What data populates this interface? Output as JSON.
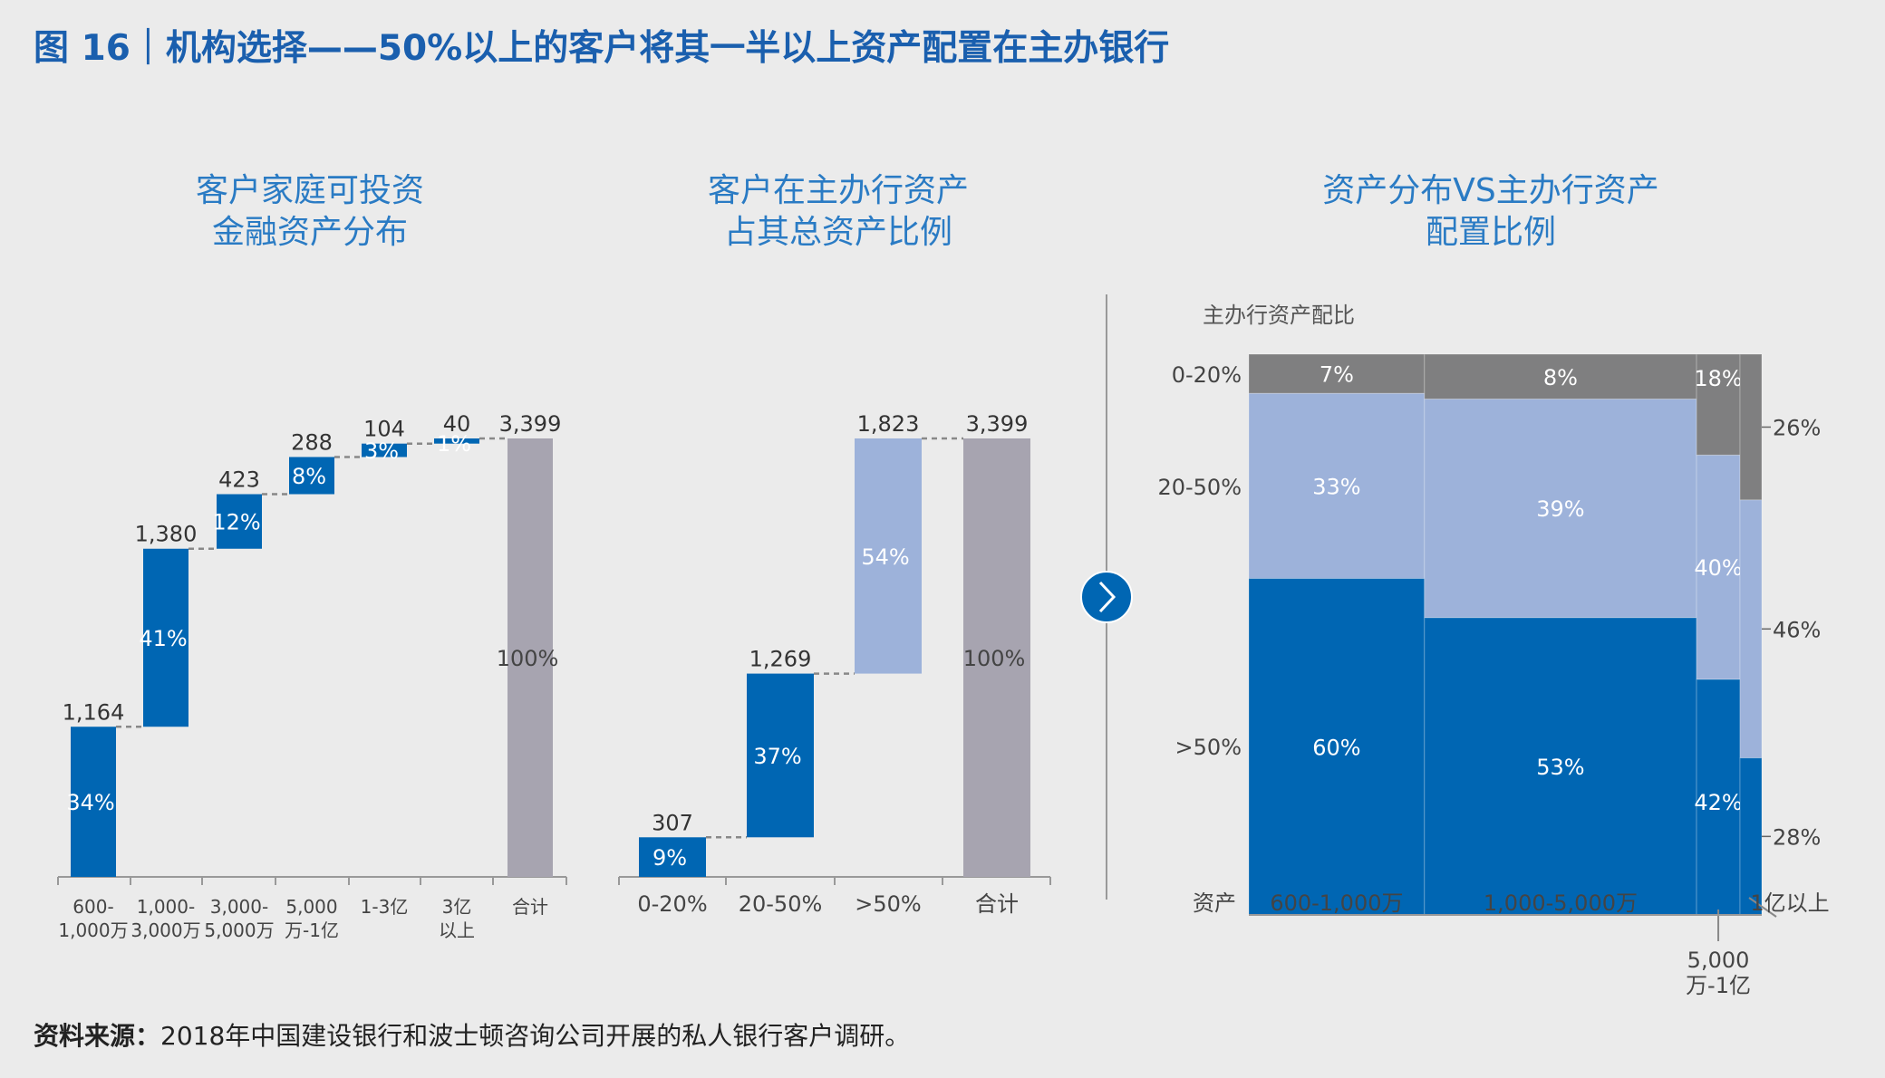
{
  "figure_title": "图 16｜机构选择——50%以上的客户将其一半以上资产配置在主办银行",
  "source": {
    "label": "资料来源：",
    "text": "2018年中国建设银行和波士顿咨询公司开展的私人银行客户调研。"
  },
  "colors": {
    "title": "#1a5fae",
    "subtitle": "#2a7bc4",
    "dark_blue": "#0066b3",
    "light_blue": "#9db2da",
    "grey": "#7f7f80",
    "total": "#a7a4b0",
    "background": "#ebebeb"
  },
  "arrow_icon": "chevron-right-circle",
  "chart_data": [
    {
      "type": "bar",
      "subtype": "waterfall",
      "title": [
        "客户家庭可投资",
        "金融资产分布"
      ],
      "categories": [
        [
          "600-",
          "1,000万"
        ],
        [
          "1,000-",
          "3,000万"
        ],
        [
          "3,000-",
          "5,000万"
        ],
        [
          "5,000",
          "万-1亿"
        ],
        [
          "1-3亿"
        ],
        [
          "3亿",
          "以上"
        ],
        [
          "合计"
        ]
      ],
      "values": [
        1164,
        1380,
        423,
        288,
        104,
        40,
        3399
      ],
      "value_labels": [
        "1,164",
        "1,380",
        "423",
        "288",
        "104",
        "40",
        "3,399"
      ],
      "percent_labels": [
        "34%",
        "41%",
        "12%",
        "8%",
        "3%",
        "1%",
        "100%"
      ],
      "total_index": 6,
      "ylim": [
        0,
        3399
      ]
    },
    {
      "type": "bar",
      "subtype": "waterfall",
      "title": [
        "客户在主办行资产",
        "占其总资产比例"
      ],
      "categories": [
        "0-20%",
        "20-50%",
        ">50%",
        "合计"
      ],
      "values": [
        307,
        1269,
        1823,
        3399
      ],
      "value_labels": [
        "307",
        "1,269",
        "1,823",
        "3,399"
      ],
      "percent_labels": [
        "9%",
        "37%",
        "54%",
        "100%"
      ],
      "bar_colors": [
        "dark_blue",
        "dark_blue",
        "light_blue",
        "total"
      ],
      "total_index": 3,
      "ylim": [
        0,
        3399
      ]
    },
    {
      "type": "mosaic",
      "title": [
        "资产分布VS主办行资产",
        "配置比例"
      ],
      "ylabel": "主办行资产配比",
      "xlabel": "资产",
      "rows": [
        "0-20%",
        "20-50%",
        ">50%"
      ],
      "columns": [
        {
          "label": [
            "600-1,000万"
          ],
          "width_value": 1164,
          "values": [
            7,
            33,
            60
          ]
        },
        {
          "label": [
            "1,000-5,000万"
          ],
          "width_value": 1803,
          "values": [
            8,
            39,
            53
          ]
        },
        {
          "label": [
            "5,000",
            "万-1亿"
          ],
          "width_value": 288,
          "values": [
            18,
            40,
            42
          ]
        },
        {
          "label": [
            "1亿以上"
          ],
          "width_value": 144,
          "values": [
            26,
            46,
            28
          ]
        }
      ]
    }
  ]
}
